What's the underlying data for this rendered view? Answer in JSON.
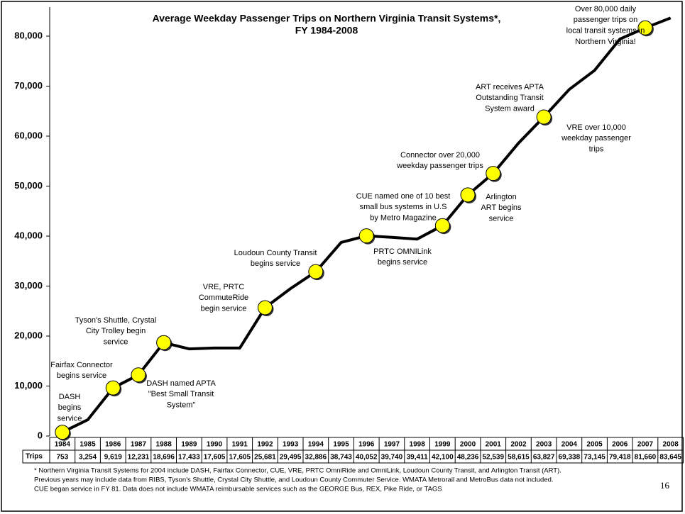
{
  "chart_data": {
    "type": "line",
    "title": [
      "Average Weekday Passenger Trips on Northern Virginia Transit Systems*,",
      "FY 1984-2008"
    ],
    "categories": [
      "1984",
      "1985",
      "1986",
      "1987",
      "1988",
      "1989",
      "1990",
      "1991",
      "1992",
      "1993",
      "1994",
      "1995",
      "1996",
      "1997",
      "1998",
      "1999",
      "2000",
      "2001",
      "2002",
      "2003",
      "2004",
      "2005",
      "2006",
      "2007",
      "2008"
    ],
    "row_label": "Trips",
    "values": [
      753,
      3254,
      9619,
      12231,
      18696,
      17433,
      17605,
      17605,
      25681,
      29495,
      32886,
      38743,
      40052,
      39740,
      39411,
      42100,
      48236,
      52539,
      58615,
      63827,
      69338,
      73145,
      79418,
      81660,
      83645
    ],
    "value_labels": [
      "753",
      "3,254",
      "9,619",
      "12,231",
      "18,696",
      "17,433",
      "17,605",
      "17,605",
      "25,681",
      "29,495",
      "32,886",
      "38,743",
      "40,052",
      "39,740",
      "39,411",
      "42,100",
      "48,236",
      "52,539",
      "58,615",
      "63,827",
      "69,338",
      "73,145",
      "79,418",
      "81,660",
      "83,645"
    ],
    "color": "#000000",
    "marker_color": "#ffff00",
    "ylim": [
      0,
      80000
    ],
    "yticks": [
      0,
      {
        "value": 10000,
        "label": "10,000"
      },
      {
        "value": 20000,
        "label": "20,000"
      },
      {
        "value": 30000,
        "label": "30,000"
      },
      {
        "value": 40000,
        "label": "40,000"
      },
      {
        "value": 50000,
        "label": "50,000"
      },
      {
        "value": 60000,
        "label": "60,000"
      },
      {
        "value": 70000,
        "label": "70,000"
      },
      {
        "value": 80000,
        "label": "80,000"
      }
    ],
    "annotations": [
      {
        "lines": [
          "DASH",
          "begins",
          "service"
        ]
      },
      {
        "lines": [
          "Fairfax Connector",
          "begins service"
        ]
      },
      {
        "lines": [
          "Tyson's Shuttle, Crystal",
          "City Trolley begin",
          "service"
        ]
      },
      {
        "lines": [
          "DASH named APTA",
          "\"Best Small Transit",
          "System\""
        ]
      },
      {
        "lines": [
          "VRE, PRTC",
          "CommuteRide",
          "begin service"
        ]
      },
      {
        "lines": [
          "Loudoun County Transit",
          "begins service"
        ]
      },
      {
        "lines": [
          "CUE named one of 10 best",
          "small bus systems in U.S",
          "by Metro Magazine"
        ]
      },
      {
        "lines": [
          "PRTC OMNILink",
          "begins service"
        ]
      },
      {
        "lines": [
          "Connector over 20,000",
          "weekday passenger trips"
        ]
      },
      {
        "lines": [
          "Arlington",
          "ART begins",
          "service"
        ]
      },
      {
        "lines": [
          "ART receives APTA",
          "Outstanding Transit",
          "System award"
        ]
      },
      {
        "lines": [
          "VRE over 10,000",
          "weekday passenger",
          "trips"
        ]
      },
      {
        "lines": [
          "Over 80,000 daily",
          "passenger trips on",
          "local transit systems in",
          "Northern Virginia!"
        ]
      }
    ],
    "footnote": [
      "*  Northern Virginia Transit Systems for 2004 include DASH, Fairfax Connector, CUE, VRE, PRTC OmniRide and OmniLink, Loudoun County Transit, and Arlington Transit (ART).",
      "Previous years may include data from RIBS, Tyson's Shuttle, Crystal City Shuttle, and Loudoun County Commuter Service.  WMATA Metrorail and MetroBus data not included.",
      "CUE began service in FY 81.  Data does not include WMATA reimbursable services such as the GEORGE Bus, REX, Pike Ride, or TAGS"
    ]
  },
  "page_number": "16"
}
